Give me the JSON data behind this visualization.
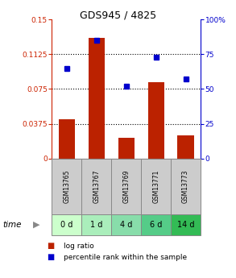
{
  "title": "GDS945 / 4825",
  "categories": [
    "GSM13765",
    "GSM13767",
    "GSM13769",
    "GSM13771",
    "GSM13773"
  ],
  "time_labels": [
    "0 d",
    "1 d",
    "4 d",
    "6 d",
    "14 d"
  ],
  "log_ratio": [
    0.042,
    0.13,
    0.022,
    0.082,
    0.025
  ],
  "percentile_rank": [
    65,
    85,
    52,
    73,
    57
  ],
  "bar_color": "#bb2200",
  "dot_color": "#0000cc",
  "left_ylim": [
    0,
    0.15
  ],
  "right_ylim": [
    0,
    100
  ],
  "left_yticks": [
    0,
    0.0375,
    0.075,
    0.1125,
    0.15
  ],
  "left_yticklabels": [
    "0",
    "0.0375",
    "0.075",
    "0.1125",
    "0.15"
  ],
  "right_yticks": [
    0,
    25,
    50,
    75,
    100
  ],
  "right_yticklabels": [
    "0",
    "25",
    "50",
    "75",
    "100%"
  ],
  "grid_yticks": [
    0.0375,
    0.075,
    0.1125
  ],
  "time_row_colors": [
    "#ccffcc",
    "#aaeebb",
    "#88ddaa",
    "#55cc88",
    "#33bb55"
  ],
  "sample_row_color": "#cccccc",
  "bg_color": "#ffffff",
  "title_color": "#000000",
  "left_axis_color": "#cc2200",
  "right_axis_color": "#0000cc",
  "border_color": "#888888"
}
